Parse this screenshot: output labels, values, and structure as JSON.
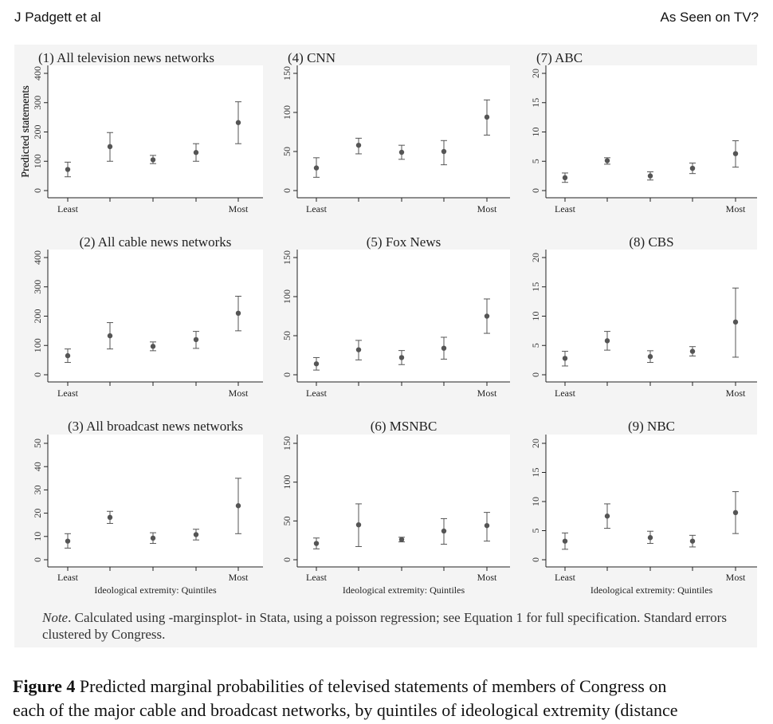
{
  "header": {
    "author": "J Padgett et al",
    "title": "As Seen on TV?"
  },
  "axis": {
    "ylabel": "Predicted statements",
    "xlabel": "Ideological extremity: Quintiles",
    "x_tick_least": "Least",
    "x_tick_most": "Most"
  },
  "chart_data": [
    {
      "type": "scatter",
      "title": "(1) All television news networks",
      "ylim": [
        0,
        400
      ],
      "yticks": [
        0,
        100,
        200,
        300,
        400
      ],
      "x": [
        1,
        2,
        3,
        4,
        5
      ],
      "values": [
        72,
        150,
        105,
        130,
        232
      ],
      "ci_low": [
        47,
        100,
        92,
        100,
        160
      ],
      "ci_high": [
        97,
        198,
        120,
        160,
        303
      ]
    },
    {
      "type": "scatter",
      "title": "(2) All cable news networks",
      "ylim": [
        0,
        400
      ],
      "yticks": [
        0,
        100,
        200,
        300,
        400
      ],
      "x": [
        1,
        2,
        3,
        4,
        5
      ],
      "values": [
        65,
        133,
        97,
        120,
        210
      ],
      "ci_low": [
        42,
        88,
        82,
        90,
        150
      ],
      "ci_high": [
        88,
        178,
        112,
        148,
        268
      ]
    },
    {
      "type": "scatter",
      "title": "(3) All broadcast news networks",
      "ylim": [
        0,
        50
      ],
      "yticks": [
        0,
        10,
        20,
        30,
        40,
        50
      ],
      "x": [
        1,
        2,
        3,
        4,
        5
      ],
      "values": [
        8,
        18.2,
        9.3,
        10.8,
        23.2
      ],
      "ci_low": [
        5,
        15.6,
        7,
        8.5,
        11.2
      ],
      "ci_high": [
        11.2,
        20.8,
        11.6,
        13.1,
        35
      ]
    },
    {
      "type": "scatter",
      "title": "(4) CNN",
      "ylim": [
        0,
        150
      ],
      "yticks": [
        0,
        50,
        100,
        150
      ],
      "x": [
        1,
        2,
        3,
        4,
        5
      ],
      "values": [
        29,
        58,
        49,
        50,
        94
      ],
      "ci_low": [
        17,
        47,
        40,
        33,
        71
      ],
      "ci_high": [
        42,
        67,
        58,
        64,
        116
      ]
    },
    {
      "type": "scatter",
      "title": "(5) Fox News",
      "ylim": [
        0,
        150
      ],
      "yticks": [
        0,
        50,
        100,
        150
      ],
      "x": [
        1,
        2,
        3,
        4,
        5
      ],
      "values": [
        14,
        32,
        22,
        34,
        75
      ],
      "ci_low": [
        6,
        19,
        13,
        20,
        53
      ],
      "ci_high": [
        22,
        44,
        31,
        48,
        97
      ]
    },
    {
      "type": "scatter",
      "title": "(6) MSNBC",
      "ylim": [
        0,
        150
      ],
      "yticks": [
        0,
        50,
        100,
        150
      ],
      "x": [
        1,
        2,
        3,
        4,
        5
      ],
      "values": [
        21,
        45,
        26,
        37,
        44
      ],
      "ci_low": [
        14,
        17,
        23,
        20,
        24
      ],
      "ci_high": [
        28,
        72,
        29,
        53,
        61
      ]
    },
    {
      "type": "scatter",
      "title": "(7) ABC",
      "ylim": [
        0,
        20
      ],
      "yticks": [
        0,
        5,
        10,
        15,
        20
      ],
      "x": [
        1,
        2,
        3,
        4,
        5
      ],
      "values": [
        2.2,
        5.1,
        2.5,
        3.8,
        6.3
      ],
      "ci_low": [
        1.4,
        4.5,
        1.8,
        2.9,
        4
      ],
      "ci_high": [
        3,
        5.6,
        3.2,
        4.7,
        8.5
      ]
    },
    {
      "type": "scatter",
      "title": "(8) CBS",
      "ylim": [
        0,
        20
      ],
      "yticks": [
        0,
        5,
        10,
        15,
        20
      ],
      "x": [
        1,
        2,
        3,
        4,
        5
      ],
      "values": [
        2.8,
        5.8,
        3.1,
        4,
        9
      ],
      "ci_low": [
        1.5,
        4.2,
        2.1,
        3.2,
        3
      ],
      "ci_high": [
        4,
        7.4,
        4.1,
        4.8,
        14.8
      ]
    },
    {
      "type": "scatter",
      "title": "(9) NBC",
      "ylim": [
        0,
        20
      ],
      "yticks": [
        0,
        5,
        10,
        15,
        20
      ],
      "x": [
        1,
        2,
        3,
        4,
        5
      ],
      "values": [
        3.2,
        7.5,
        3.8,
        3.2,
        8.1
      ],
      "ci_low": [
        1.8,
        5.4,
        2.8,
        2.2,
        4.5
      ],
      "ci_high": [
        4.6,
        9.6,
        4.9,
        4.2,
        11.7
      ]
    }
  ],
  "note": {
    "label": "Note",
    "text": ". Calculated using -marginsplot- in Stata, using a poisson regression; see Equation 1 for full specification. Standard errors clustered by Congress."
  },
  "caption": {
    "label": "Figure 4",
    "line1": " Predicted marginal probabilities of televised statements of members of Congress on",
    "line2": "each of the major cable and broadcast networks, by quintiles of ideological extremity (distance"
  }
}
